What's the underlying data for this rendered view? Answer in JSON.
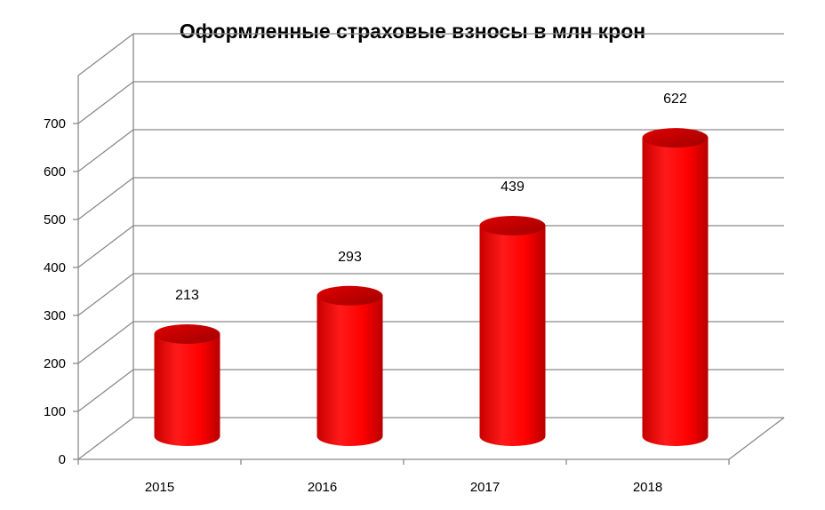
{
  "chart_data": {
    "type": "bar",
    "title": "Оформленные страховые взносы в млн крон",
    "categories": [
      "2015",
      "2016",
      "2017",
      "2018"
    ],
    "values": [
      213,
      293,
      439,
      622
    ],
    "data_labels": [
      "213",
      "293",
      "439",
      "622"
    ],
    "y_ticks": [
      "0",
      "100",
      "200",
      "300",
      "400",
      "500",
      "600",
      "700"
    ],
    "ylim": [
      0,
      700
    ],
    "grid": true,
    "legend": "none",
    "style": "3d-cylinder",
    "bar_color": "#ff0000"
  }
}
